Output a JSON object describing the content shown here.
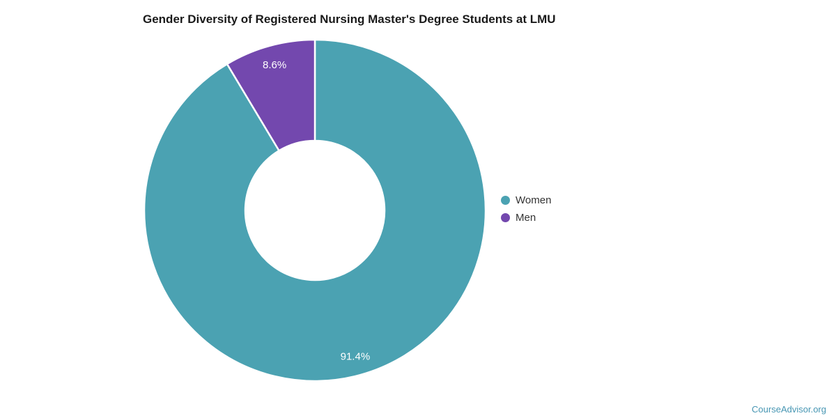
{
  "chart_data": {
    "type": "donut",
    "title": "Gender Diversity of Registered Nursing Master's Degree Students at LMU",
    "legend_position": "right",
    "inner_radius_ratio": 0.41,
    "data_label_color": "#FFFFFF",
    "segments": [
      {
        "label": "Women",
        "value": 91.4,
        "display_label": "91.4%",
        "color": "#4BA2B2"
      },
      {
        "label": "Men",
        "value": 8.6,
        "display_label": "8.6%",
        "color": "#7348AE"
      }
    ]
  },
  "footer": {
    "brand": "CourseAdvisor.org",
    "color": "#4796B3"
  }
}
